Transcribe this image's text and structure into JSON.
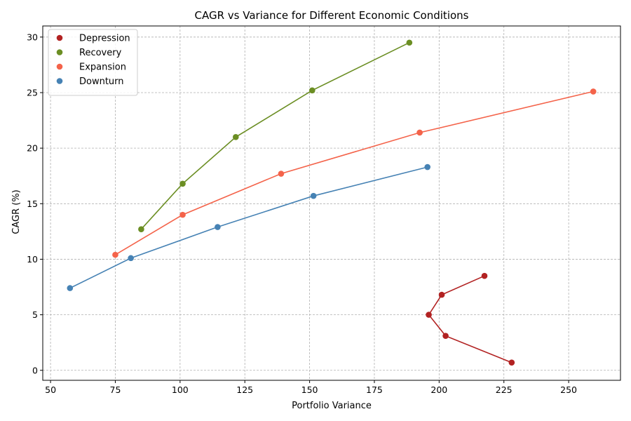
{
  "chart_data": {
    "type": "scatter",
    "title": "CAGR vs Variance for Different Economic Conditions",
    "xlabel": "Portfolio Variance",
    "ylabel": "CAGR (%)",
    "xlim": [
      47,
      270
    ],
    "ylim": [
      -0.9,
      31
    ],
    "xticks": [
      50,
      75,
      100,
      125,
      150,
      175,
      200,
      225,
      250
    ],
    "yticks": [
      0,
      5,
      10,
      15,
      20,
      25,
      30
    ],
    "grid": true,
    "legend_position": "upper-left",
    "series": [
      {
        "name": "Depression",
        "color": "#b22222",
        "points": [
          {
            "x": 217.5,
            "y": 8.5
          },
          {
            "x": 201.0,
            "y": 6.8
          },
          {
            "x": 196.0,
            "y": 5.0
          },
          {
            "x": 202.5,
            "y": 3.1
          },
          {
            "x": 228.0,
            "y": 0.7
          }
        ]
      },
      {
        "name": "Recovery",
        "color": "#6b8e23",
        "points": [
          {
            "x": 85.0,
            "y": 12.7
          },
          {
            "x": 101.0,
            "y": 16.8
          },
          {
            "x": 121.5,
            "y": 21.0
          },
          {
            "x": 151.0,
            "y": 25.2
          },
          {
            "x": 188.5,
            "y": 29.5
          }
        ]
      },
      {
        "name": "Expansion",
        "color": "#f4634a",
        "points": [
          {
            "x": 75.0,
            "y": 10.4
          },
          {
            "x": 101.0,
            "y": 14.0
          },
          {
            "x": 139.0,
            "y": 17.7
          },
          {
            "x": 192.5,
            "y": 21.4
          },
          {
            "x": 259.5,
            "y": 25.1
          }
        ]
      },
      {
        "name": "Downturn",
        "color": "#4682b4",
        "points": [
          {
            "x": 57.5,
            "y": 7.4
          },
          {
            "x": 81.0,
            "y": 10.1
          },
          {
            "x": 114.5,
            "y": 12.9
          },
          {
            "x": 151.5,
            "y": 15.7
          },
          {
            "x": 195.5,
            "y": 18.3
          }
        ]
      }
    ]
  }
}
